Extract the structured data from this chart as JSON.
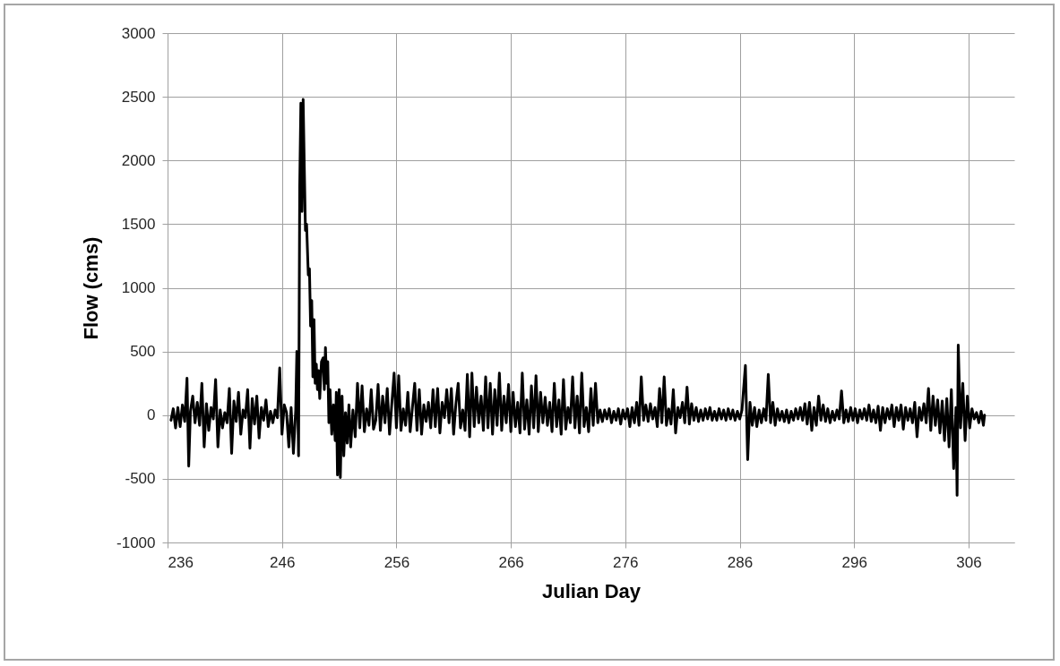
{
  "chart_data": {
    "type": "line",
    "xlabel": "Julian Day",
    "ylabel": "Flow (cms)",
    "xlim": [
      236,
      310
    ],
    "xticks": [
      236,
      246,
      256,
      266,
      276,
      286,
      296,
      306
    ],
    "ylim": [
      -1000,
      3000
    ],
    "yticks": [
      -1000,
      -500,
      0,
      500,
      1000,
      1500,
      2000,
      2500,
      3000
    ],
    "grid": true,
    "marker": "none",
    "line_style": "solid",
    "series": [
      {
        "color": "#000000",
        "x": [
          236.3,
          236.5,
          236.7,
          236.9,
          237.1,
          237.3,
          237.5,
          237.7,
          237.85,
          238.0,
          238.2,
          238.4,
          238.6,
          238.8,
          239.0,
          239.2,
          239.4,
          239.6,
          239.8,
          240.0,
          240.2,
          240.4,
          240.6,
          240.8,
          241.0,
          241.2,
          241.4,
          241.6,
          241.8,
          242.0,
          242.2,
          242.4,
          242.6,
          242.8,
          243.0,
          243.2,
          243.4,
          243.6,
          243.8,
          244.0,
          244.2,
          244.4,
          244.6,
          244.8,
          245.0,
          245.2,
          245.4,
          245.6,
          245.8,
          246.0,
          246.2,
          246.4,
          246.6,
          246.8,
          247.0,
          247.2,
          247.3,
          247.45,
          247.55,
          247.65,
          247.75,
          247.85,
          247.95,
          248.05,
          248.15,
          248.3,
          248.4,
          248.5,
          248.6,
          248.7,
          248.8,
          248.9,
          249.0,
          249.1,
          249.2,
          249.3,
          249.45,
          249.6,
          249.7,
          249.8,
          249.9,
          250.0,
          250.1,
          250.2,
          250.35,
          250.5,
          250.65,
          250.75,
          250.85,
          251.0,
          251.1,
          251.25,
          251.4,
          251.55,
          251.7,
          251.85,
          252.0,
          252.2,
          252.4,
          252.6,
          252.8,
          253.0,
          253.2,
          253.4,
          253.6,
          253.8,
          254.0,
          254.2,
          254.4,
          254.6,
          254.8,
          255.0,
          255.2,
          255.4,
          255.6,
          255.8,
          256.0,
          256.2,
          256.4,
          256.6,
          256.8,
          257.0,
          257.2,
          257.4,
          257.6,
          257.8,
          258.0,
          258.2,
          258.4,
          258.6,
          258.8,
          259.0,
          259.2,
          259.4,
          259.6,
          259.8,
          260.0,
          260.2,
          260.4,
          260.6,
          260.8,
          261.0,
          261.2,
          261.4,
          261.6,
          261.8,
          262.0,
          262.2,
          262.4,
          262.6,
          262.8,
          263.0,
          263.2,
          263.4,
          263.6,
          263.8,
          264.0,
          264.2,
          264.4,
          264.6,
          264.8,
          265.0,
          265.2,
          265.4,
          265.6,
          265.8,
          266.0,
          266.2,
          266.4,
          266.6,
          266.8,
          267.0,
          267.2,
          267.4,
          267.6,
          267.8,
          268.0,
          268.2,
          268.4,
          268.6,
          268.8,
          269.0,
          269.2,
          269.4,
          269.6,
          269.8,
          270.0,
          270.2,
          270.4,
          270.6,
          270.8,
          271.0,
          271.2,
          271.4,
          271.6,
          271.8,
          272.0,
          272.2,
          272.4,
          272.6,
          272.8,
          273.0,
          273.2,
          273.4,
          273.6,
          273.8,
          274.0,
          274.2,
          274.4,
          274.6,
          274.8,
          275.0,
          275.2,
          275.4,
          275.6,
          275.8,
          276.0,
          276.2,
          276.4,
          276.6,
          276.8,
          277.0,
          277.2,
          277.4,
          277.6,
          277.8,
          278.0,
          278.2,
          278.4,
          278.6,
          278.8,
          279.0,
          279.2,
          279.4,
          279.6,
          279.8,
          280.0,
          280.2,
          280.4,
          280.6,
          280.8,
          281.0,
          281.2,
          281.4,
          281.6,
          281.8,
          282.0,
          282.2,
          282.4,
          282.6,
          282.8,
          283.0,
          283.2,
          283.4,
          283.6,
          283.8,
          284.0,
          284.2,
          284.4,
          284.6,
          284.8,
          285.0,
          285.2,
          285.4,
          285.6,
          285.8,
          286.0,
          286.2,
          286.5,
          286.7,
          286.9,
          287.1,
          287.3,
          287.5,
          287.7,
          287.9,
          288.1,
          288.3,
          288.5,
          288.7,
          288.9,
          289.1,
          289.3,
          289.5,
          289.7,
          289.9,
          290.1,
          290.3,
          290.5,
          290.7,
          290.9,
          291.1,
          291.3,
          291.5,
          291.7,
          291.9,
          292.1,
          292.3,
          292.5,
          292.7,
          292.9,
          293.1,
          293.3,
          293.5,
          293.7,
          293.9,
          294.1,
          294.3,
          294.5,
          294.7,
          294.9,
          295.1,
          295.3,
          295.5,
          295.7,
          295.9,
          296.1,
          296.3,
          296.5,
          296.7,
          296.9,
          297.1,
          297.3,
          297.5,
          297.7,
          297.9,
          298.1,
          298.3,
          298.5,
          298.7,
          298.9,
          299.1,
          299.3,
          299.5,
          299.7,
          299.9,
          300.1,
          300.3,
          300.5,
          300.7,
          300.9,
          301.1,
          301.3,
          301.5,
          301.7,
          301.9,
          302.1,
          302.3,
          302.5,
          302.7,
          302.9,
          303.1,
          303.3,
          303.5,
          303.7,
          303.9,
          304.1,
          304.3,
          304.5,
          304.7,
          304.9,
          305.0,
          305.1,
          305.3,
          305.5,
          305.7,
          305.9,
          306.1,
          306.3,
          306.5,
          306.7,
          306.9,
          307.1,
          307.3,
          307.4
        ],
        "values": [
          -40,
          50,
          -100,
          60,
          -90,
          80,
          -50,
          290,
          -400,
          30,
          150,
          -60,
          100,
          -80,
          250,
          -250,
          90,
          -120,
          60,
          -30,
          280,
          -250,
          40,
          -100,
          20,
          -60,
          210,
          -300,
          110,
          -50,
          180,
          -150,
          40,
          -20,
          200,
          -260,
          130,
          -70,
          150,
          -180,
          60,
          -40,
          120,
          -90,
          30,
          -60,
          40,
          -20,
          370,
          -150,
          80,
          20,
          -250,
          60,
          -300,
          40,
          500,
          -320,
          1800,
          2450,
          1600,
          2480,
          1950,
          1450,
          1500,
          1100,
          1150,
          700,
          900,
          300,
          750,
          250,
          400,
          200,
          350,
          130,
          420,
          450,
          200,
          530,
          250,
          420,
          -60,
          200,
          -150,
          80,
          -200,
          180,
          -470,
          200,
          -490,
          150,
          -320,
          20,
          -220,
          80,
          -250,
          40,
          -170,
          250,
          -100,
          230,
          -130,
          50,
          -80,
          200,
          -110,
          -40,
          240,
          -120,
          150,
          -60,
          210,
          -150,
          90,
          330,
          -100,
          310,
          -120,
          50,
          -80,
          180,
          -130,
          60,
          250,
          -120,
          200,
          -150,
          80,
          -50,
          100,
          -100,
          200,
          -90,
          210,
          -140,
          100,
          -20,
          200,
          -60,
          210,
          -150,
          90,
          250,
          -100,
          40,
          -120,
          320,
          -170,
          330,
          -90,
          220,
          -60,
          150,
          -120,
          300,
          -100,
          250,
          -150,
          200,
          -80,
          330,
          -120,
          150,
          -60,
          240,
          -130,
          180,
          -90,
          100,
          -140,
          330,
          -110,
          120,
          -150,
          230,
          -100,
          310,
          -130,
          180,
          -60,
          140,
          -80,
          100,
          -130,
          250,
          -90,
          120,
          -150,
          280,
          -110,
          60,
          -60,
          300,
          -100,
          150,
          -140,
          330,
          -90,
          60,
          -130,
          210,
          -80,
          250,
          -60,
          40,
          -50,
          40,
          -30,
          50,
          -60,
          30,
          -40,
          50,
          -70,
          40,
          -30,
          50,
          -90,
          60,
          -60,
          100,
          -80,
          300,
          -40,
          80,
          -50,
          90,
          -30,
          60,
          -90,
          210,
          -60,
          300,
          -80,
          50,
          -70,
          200,
          -140,
          60,
          -20,
          100,
          -60,
          220,
          -70,
          90,
          -40,
          60,
          -50,
          40,
          -40,
          50,
          -30,
          60,
          -40,
          30,
          -40,
          50,
          -30,
          40,
          -40,
          50,
          -30,
          40,
          -40,
          30,
          -30,
          40,
          390,
          -350,
          100,
          -80,
          60,
          -90,
          40,
          -60,
          50,
          -40,
          320,
          -60,
          100,
          -80,
          50,
          -40,
          30,
          -50,
          40,
          -60,
          30,
          -40,
          50,
          -30,
          60,
          -40,
          90,
          -70,
          100,
          -120,
          60,
          -80,
          150,
          -40,
          80,
          -50,
          50,
          -60,
          30,
          -40,
          40,
          -30,
          190,
          -60,
          40,
          -50,
          60,
          -40,
          50,
          -60,
          40,
          -30,
          50,
          -40,
          80,
          -50,
          40,
          -60,
          70,
          -120,
          60,
          -60,
          50,
          -30,
          80,
          -90,
          60,
          -40,
          80,
          -110,
          60,
          -40,
          50,
          -60,
          100,
          -170,
          60,
          -40,
          90,
          -60,
          210,
          -120,
          150,
          -80,
          120,
          -140,
          110,
          -200,
          130,
          -250,
          200,
          -420,
          60,
          -630,
          550,
          -100,
          250,
          -200,
          150,
          -100,
          50,
          -30,
          20,
          -60,
          30,
          -80,
          0
        ]
      }
    ]
  }
}
